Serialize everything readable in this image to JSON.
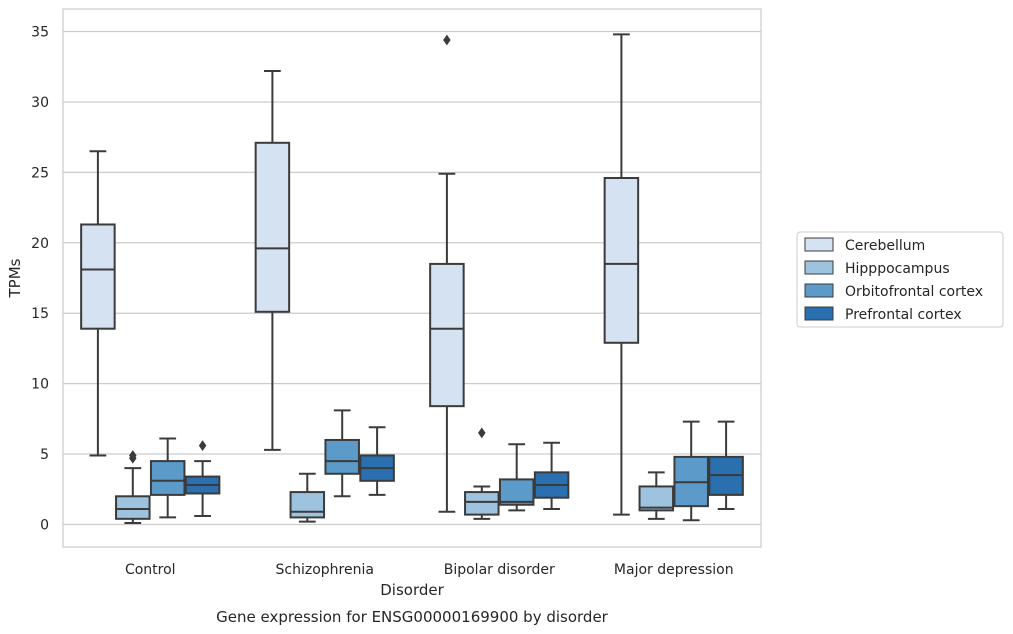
{
  "chart_data": {
    "type": "box",
    "title": "Gene expression for ENSG00000169900 by disorder",
    "xlabel": "Disorder",
    "ylabel": "TPMs",
    "ylim": [
      -1.6,
      36.6
    ],
    "yticks": [
      0,
      5,
      10,
      15,
      20,
      25,
      30,
      35
    ],
    "grid": "horizontal",
    "legend_position": "right",
    "categories": [
      "Control",
      "Schizophrenia",
      "Bipolar disorder",
      "Major depression"
    ],
    "series": [
      {
        "name": "Cerebellum",
        "color": "#d4e2f1",
        "boxes": [
          {
            "whisker_low": 4.9,
            "q1": 13.9,
            "median": 18.1,
            "q3": 21.3,
            "whisker_high": 26.5,
            "outliers": []
          },
          {
            "whisker_low": 5.3,
            "q1": 15.1,
            "median": 19.6,
            "q3": 27.1,
            "whisker_high": 32.2,
            "outliers": []
          },
          {
            "whisker_low": 0.9,
            "q1": 8.4,
            "median": 13.9,
            "q3": 18.5,
            "whisker_high": 24.9,
            "outliers": [
              34.4
            ]
          },
          {
            "whisker_low": 0.7,
            "q1": 12.9,
            "median": 18.5,
            "q3": 24.6,
            "whisker_high": 34.8,
            "outliers": []
          }
        ]
      },
      {
        "name": "Hipppocampus",
        "color": "#9dc3de",
        "boxes": [
          {
            "whisker_low": 0.1,
            "q1": 0.4,
            "median": 1.1,
            "q3": 2.0,
            "whisker_high": 4.0,
            "outliers": [
              4.7,
              4.9
            ]
          },
          {
            "whisker_low": 0.2,
            "q1": 0.5,
            "median": 0.9,
            "q3": 2.3,
            "whisker_high": 3.6,
            "outliers": []
          },
          {
            "whisker_low": 0.4,
            "q1": 0.7,
            "median": 1.6,
            "q3": 2.3,
            "whisker_high": 2.7,
            "outliers": [
              6.5
            ]
          },
          {
            "whisker_low": 0.4,
            "q1": 1.0,
            "median": 1.2,
            "q3": 2.7,
            "whisker_high": 3.7,
            "outliers": []
          }
        ]
      },
      {
        "name": "Orbitofrontal cortex",
        "color": "#5b9ac9",
        "boxes": [
          {
            "whisker_low": 0.5,
            "q1": 2.1,
            "median": 3.1,
            "q3": 4.5,
            "whisker_high": 6.1,
            "outliers": []
          },
          {
            "whisker_low": 2.0,
            "q1": 3.6,
            "median": 4.5,
            "q3": 6.0,
            "whisker_high": 8.1,
            "outliers": []
          },
          {
            "whisker_low": 1.0,
            "q1": 1.4,
            "median": 1.6,
            "q3": 3.2,
            "whisker_high": 5.7,
            "outliers": []
          },
          {
            "whisker_low": 0.3,
            "q1": 1.3,
            "median": 3.0,
            "q3": 4.8,
            "whisker_high": 7.3,
            "outliers": []
          }
        ]
      },
      {
        "name": "Prefrontal cortex",
        "color": "#2a6fb0",
        "boxes": [
          {
            "whisker_low": 0.6,
            "q1": 2.2,
            "median": 2.8,
            "q3": 3.4,
            "whisker_high": 4.5,
            "outliers": [
              5.6
            ]
          },
          {
            "whisker_low": 2.1,
            "q1": 3.1,
            "median": 4.0,
            "q3": 4.9,
            "whisker_high": 6.9,
            "outliers": []
          },
          {
            "whisker_low": 1.1,
            "q1": 1.9,
            "median": 2.8,
            "q3": 3.7,
            "whisker_high": 5.8,
            "outliers": []
          },
          {
            "whisker_low": 1.1,
            "q1": 2.1,
            "median": 3.5,
            "q3": 4.8,
            "whisker_high": 7.3,
            "outliers": []
          }
        ]
      }
    ]
  }
}
